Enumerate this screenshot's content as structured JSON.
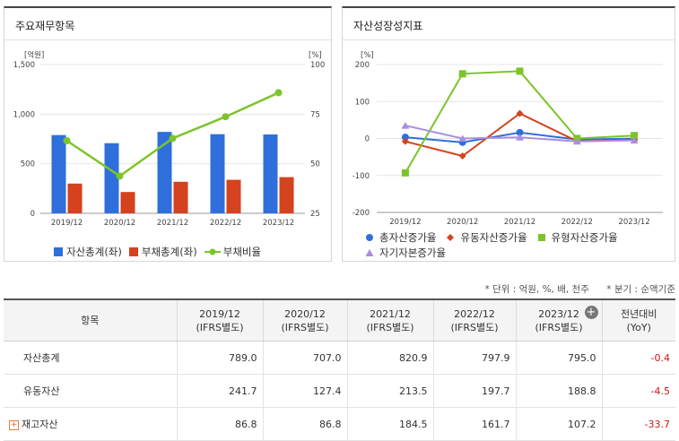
{
  "left_panel": {
    "title": "주요재무항목"
  },
  "right_panel": {
    "title": "자산성장성지표"
  },
  "chart_data": [
    {
      "type": "bar",
      "categories": [
        "2019/12",
        "2020/12",
        "2021/12",
        "2022/12",
        "2023/12"
      ],
      "series": [
        {
          "name": "자산총계(좌)",
          "values": [
            789.0,
            707.0,
            820.9,
            797.9,
            795.0
          ],
          "color": "#2f6fdb",
          "axis": "left"
        },
        {
          "name": "부채총계(좌)",
          "values": [
            300,
            215,
            318,
            338,
            365
          ],
          "color": "#d4421e",
          "axis": "left"
        },
        {
          "name": "부채비율",
          "type": "line",
          "values": [
            61.6,
            43.8,
            62.8,
            73.7,
            85.8
          ],
          "color": "#7cc42a",
          "axis": "right"
        }
      ],
      "ylabel_left": "[억원]",
      "ylabel_right": "[%]",
      "ylim_left": [
        0,
        1500
      ],
      "ylim_right": [
        25,
        100
      ],
      "yticks_left": [
        "0",
        "500",
        "1,000",
        "1,500"
      ],
      "yticks_right": [
        "25",
        "50",
        "75",
        "100"
      ],
      "legend": "bottom"
    },
    {
      "type": "line",
      "categories": [
        "2019/12",
        "2020/12",
        "2021/12",
        "2022/12",
        "2023/12"
      ],
      "series": [
        {
          "name": "총자산증가율",
          "values": [
            3.4,
            -10.4,
            16.1,
            -2.8,
            -0.4
          ],
          "color": "#2f6fdb",
          "marker": "circle"
        },
        {
          "name": "유동자산증가율",
          "values": [
            -8,
            -47.3,
            67.6,
            -7.4,
            -4.5
          ],
          "color": "#d4421e",
          "marker": "diamond"
        },
        {
          "name": "유형자산증가율",
          "values": [
            -93,
            175,
            182,
            0,
            8
          ],
          "color": "#7cc42a",
          "marker": "square"
        },
        {
          "name": "자기자본증가율",
          "values": [
            35,
            0,
            3,
            -8,
            -5
          ],
          "color": "#a98de0",
          "marker": "triangle"
        }
      ],
      "ylabel": "[%]",
      "ylim": [
        -200,
        200
      ],
      "yticks": [
        "-200",
        "-100",
        "0",
        "100",
        "200"
      ],
      "legend": "bottom"
    }
  ],
  "notes": {
    "unit": "* 단위 : 억원, %, 배, 천주",
    "period": "* 분기 : 순액기준"
  },
  "table": {
    "header_item": "항목",
    "columns": [
      {
        "period": "2019/12",
        "basis": "(IFRS별도)"
      },
      {
        "period": "2020/12",
        "basis": "(IFRS별도)"
      },
      {
        "period": "2021/12",
        "basis": "(IFRS별도)"
      },
      {
        "period": "2022/12",
        "basis": "(IFRS별도)"
      },
      {
        "period": "2023/12",
        "basis": "(IFRS별도)"
      }
    ],
    "yoy_header": [
      "전년대비",
      "(YoY)"
    ],
    "rows": [
      {
        "label": "자산총계",
        "expandable": false,
        "values": [
          "789.0",
          "707.0",
          "820.9",
          "797.9",
          "795.0"
        ],
        "yoy": "-0.4"
      },
      {
        "label": "유동자산",
        "expandable": false,
        "values": [
          "241.7",
          "127.4",
          "213.5",
          "197.7",
          "188.8"
        ],
        "yoy": "-4.5"
      },
      {
        "label": "재고자산",
        "expandable": true,
        "values": [
          "86.8",
          "86.8",
          "184.5",
          "161.7",
          "107.2"
        ],
        "yoy": "-33.7"
      }
    ]
  }
}
